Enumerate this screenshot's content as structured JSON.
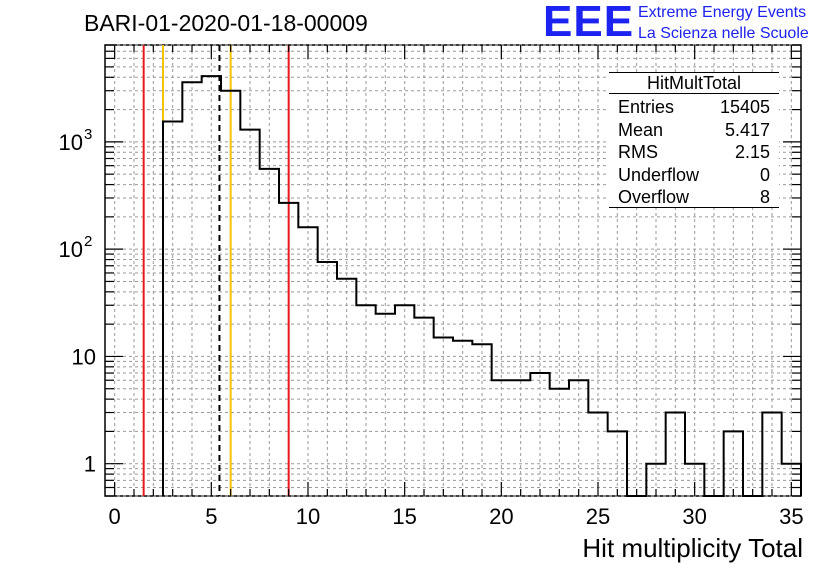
{
  "title": "BARI-01-2020-01-18-00009",
  "logo": {
    "mark": "EEE",
    "line1": "Extreme Energy Events",
    "line2": "La Scienza nelle Scuole",
    "color": "#1c22f0"
  },
  "stats": {
    "title": "HitMultTotal",
    "rows": [
      {
        "label": "Entries",
        "value": "15405"
      },
      {
        "label": "Mean",
        "value": "5.417"
      },
      {
        "label": "RMS",
        "value": "2.15"
      },
      {
        "label": "Underflow",
        "value": "0"
      },
      {
        "label": "Overflow",
        "value": "8"
      }
    ]
  },
  "chart_data": {
    "type": "histogram",
    "title": "BARI-01-2020-01-18-00009",
    "xlabel": "Hit multiplicity Total",
    "ylabel": "",
    "xlim": [
      -0.5,
      35.5
    ],
    "ylim": [
      0.5,
      8000
    ],
    "yscale": "log",
    "grid": true,
    "legend": "stats box top-right",
    "x_ticks": [
      "0",
      "5",
      "10",
      "15",
      "20",
      "25",
      "30",
      "35"
    ],
    "y_ticks": [
      {
        "value": 1,
        "label": "1"
      },
      {
        "value": 10,
        "label": "10"
      },
      {
        "value": 100,
        "label": "10",
        "exp": "2"
      },
      {
        "value": 1000,
        "label": "10",
        "exp": "3"
      }
    ],
    "bins": [
      {
        "x": 3,
        "count": 1550
      },
      {
        "x": 4,
        "count": 3600
      },
      {
        "x": 5,
        "count": 4100
      },
      {
        "x": 6,
        "count": 3000
      },
      {
        "x": 7,
        "count": 1300
      },
      {
        "x": 8,
        "count": 560
      },
      {
        "x": 9,
        "count": 270
      },
      {
        "x": 10,
        "count": 160
      },
      {
        "x": 11,
        "count": 76
      },
      {
        "x": 12,
        "count": 53
      },
      {
        "x": 13,
        "count": 30
      },
      {
        "x": 14,
        "count": 25
      },
      {
        "x": 15,
        "count": 30
      },
      {
        "x": 16,
        "count": 23
      },
      {
        "x": 17,
        "count": 15
      },
      {
        "x": 18,
        "count": 14
      },
      {
        "x": 19,
        "count": 13
      },
      {
        "x": 20,
        "count": 6
      },
      {
        "x": 21,
        "count": 6
      },
      {
        "x": 22,
        "count": 7
      },
      {
        "x": 23,
        "count": 5
      },
      {
        "x": 24,
        "count": 6
      },
      {
        "x": 25,
        "count": 3
      },
      {
        "x": 26,
        "count": 2
      },
      {
        "x": 27,
        "count": 0
      },
      {
        "x": 28,
        "count": 1
      },
      {
        "x": 29,
        "count": 3
      },
      {
        "x": 30,
        "count": 1
      },
      {
        "x": 31,
        "count": 0
      },
      {
        "x": 32,
        "count": 2
      },
      {
        "x": 33,
        "count": 0
      },
      {
        "x": 34,
        "count": 3
      },
      {
        "x": 35,
        "count": 1
      }
    ],
    "markers": [
      {
        "name": "red-line-left",
        "x": 1.5,
        "color": "#e8181c",
        "style": "solid"
      },
      {
        "name": "yellow-line-left",
        "x": 2.5,
        "color": "#f5c400",
        "style": "solid"
      },
      {
        "name": "mean-line",
        "x": 5.42,
        "color": "#000000",
        "style": "dashed"
      },
      {
        "name": "yellow-line-right",
        "x": 6.0,
        "color": "#f5c400",
        "style": "solid"
      },
      {
        "name": "red-line-right",
        "x": 9.0,
        "color": "#e8181c",
        "style": "solid"
      }
    ]
  }
}
